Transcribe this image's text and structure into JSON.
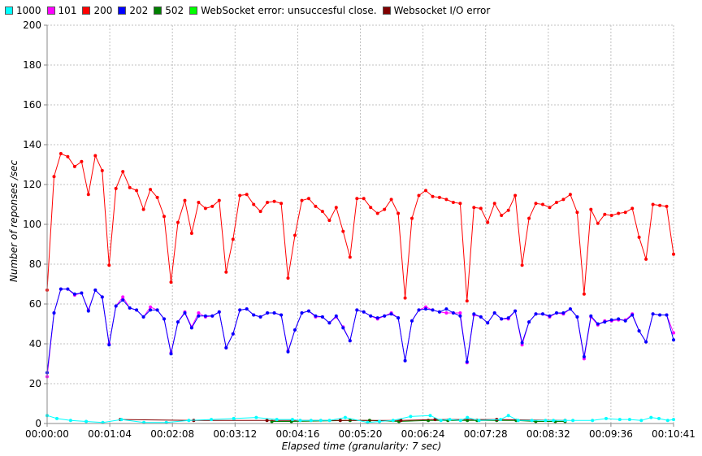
{
  "chart_data": {
    "type": "line",
    "title": "",
    "xlabel": "Elapsed time (granularity: 7 sec)",
    "ylabel": "Number of reponses /sec",
    "ylim": [
      0,
      200
    ],
    "yticks": [
      0,
      20,
      40,
      60,
      80,
      100,
      120,
      140,
      160,
      180,
      200
    ],
    "xlim_sec": [
      0,
      641
    ],
    "xtick_labels": [
      "00:00:00",
      "00:01:04",
      "00:02:08",
      "00:03:12",
      "00:04:16",
      "00:05:20",
      "00:06:24",
      "00:07:28",
      "00:08:32",
      "00:09:36",
      "00:10:41"
    ],
    "grid": true,
    "legend_position": "top",
    "x_granularity_sec": 7,
    "series": [
      {
        "name": "1000",
        "color": "#00ffff",
        "x_sec": [
          0,
          10,
          24,
          40,
          57,
          76,
          99,
          122,
          145,
          168,
          191,
          214,
          235,
          251,
          259,
          270,
          280,
          289,
          305,
          328,
          340,
          354,
          372,
          392,
          403,
          412,
          423,
          430,
          442,
          464,
          472,
          482,
          496,
          510,
          518,
          530,
          538,
          558,
          572,
          586,
          596,
          608,
          618,
          626,
          635,
          641
        ],
        "values": [
          4,
          2.5,
          1.5,
          1,
          0.5,
          2,
          0.5,
          0.5,
          1.5,
          2,
          2.5,
          3,
          2,
          2,
          1.5,
          1.5,
          1.5,
          1.5,
          3,
          0.5,
          1,
          1.5,
          3.5,
          4,
          1.5,
          2,
          1.5,
          3,
          1.5,
          2,
          4,
          1.5,
          1.5,
          1.5,
          1.5,
          1.5,
          1.5,
          1.5,
          2.5,
          2,
          2,
          1.5,
          3,
          2.5,
          1.5,
          2
        ]
      },
      {
        "name": "101",
        "color": "#ff00ff",
        "values": [
          23.5,
          55.5,
          67.5,
          67.5,
          64.5,
          65.5,
          57,
          67,
          63.5,
          40,
          59,
          63.5,
          58,
          57,
          53.5,
          58.5,
          57,
          52.5,
          35.5,
          51,
          56,
          48.5,
          55.5,
          53.5,
          54,
          56,
          38,
          45,
          57,
          57.5,
          54.5,
          53.5,
          55.5,
          55.5,
          54.5,
          36.5,
          47,
          55.5,
          56.5,
          53.5,
          53.5,
          50.5,
          53.5,
          48.5,
          41.5,
          57,
          56,
          54,
          52.5,
          54,
          55.5,
          53,
          31.5,
          51.5,
          57,
          58.5,
          57,
          56,
          55.5,
          55.5,
          55.5,
          30.5,
          54.5,
          53.5,
          50.5,
          55.5,
          52.5,
          52.5,
          56.5,
          39.5,
          51,
          55,
          55,
          53.5,
          55.5,
          55,
          57.5,
          53.5,
          32.5,
          53.5,
          49.5,
          51.5,
          51.5,
          52,
          52,
          55,
          46.5,
          41,
          55,
          54.5,
          54.5,
          45.5
        ]
      },
      {
        "name": "200",
        "color": "#ff0000",
        "values": [
          67,
          124,
          135.5,
          134,
          129,
          131.5,
          115,
          134.5,
          127,
          79.5,
          118,
          126.5,
          118.5,
          117,
          107.5,
          117.5,
          113.5,
          104,
          71,
          101,
          112,
          95.5,
          111,
          108,
          109,
          112,
          76,
          92.5,
          114.5,
          115,
          110,
          106.5,
          111,
          111.5,
          110.5,
          73,
          94.5,
          112,
          113,
          109,
          106.5,
          102,
          108.5,
          96.5,
          83.5,
          113,
          113,
          108.5,
          105.5,
          107.5,
          112.5,
          105.5,
          63,
          103,
          114.5,
          117,
          114,
          113.5,
          112.5,
          111,
          110.5,
          61.5,
          108.5,
          108,
          101,
          110.5,
          104.5,
          107,
          114.5,
          79.5,
          103,
          110.5,
          110,
          108.5,
          111,
          112.5,
          115,
          106,
          65,
          107.5,
          100.5,
          105,
          104.5,
          105.5,
          106,
          108,
          93.5,
          82.5,
          110,
          109.5,
          109,
          85
        ]
      },
      {
        "name": "202",
        "color": "#0000ff",
        "values": [
          25.5,
          55.5,
          67.5,
          67.5,
          65,
          65.5,
          56.5,
          67,
          63.5,
          39.5,
          59,
          62,
          58,
          57,
          53.5,
          57,
          57,
          52.5,
          35,
          51,
          55.5,
          48,
          54,
          54,
          54,
          56,
          38,
          45,
          57,
          57.5,
          54.5,
          53.5,
          55.5,
          55.5,
          54.5,
          36,
          47,
          55.5,
          56.5,
          54,
          53.5,
          50.5,
          54,
          48,
          41.5,
          57,
          56,
          54,
          53,
          54,
          55,
          53,
          31.5,
          51.5,
          57,
          57.5,
          57,
          56,
          57.5,
          55.5,
          54,
          31,
          55,
          53.5,
          50.5,
          55.5,
          52.5,
          53,
          56.5,
          40.5,
          51,
          55,
          55,
          54,
          55.5,
          55.5,
          57.5,
          53.5,
          33.5,
          54,
          50,
          51,
          52,
          52.5,
          51.5,
          54.5,
          46.5,
          41,
          55,
          54.5,
          54.5,
          42
        ]
      },
      {
        "name": "502",
        "color": "#008000",
        "x_sec": [
          230,
          250,
          310,
          330,
          360,
          390,
          410,
          430,
          440,
          460,
          480,
          500,
          520,
          530
        ],
        "values": [
          1,
          1,
          1.5,
          1.5,
          1,
          1.5,
          1.5,
          1.5,
          1.5,
          1.5,
          1.5,
          1,
          1,
          1
        ]
      },
      {
        "name": "WebSocket error: unsuccesful close.",
        "color": "#00ff00",
        "x_sec": [],
        "values": []
      },
      {
        "name": "Websocket I/O error",
        "color": "#800000",
        "x_sec": [
          75,
          150,
          225,
          300,
          362,
          397,
          460,
          530
        ],
        "values": [
          2,
          1.5,
          1.5,
          1.5,
          1.5,
          2,
          2,
          1.5
        ]
      }
    ]
  }
}
